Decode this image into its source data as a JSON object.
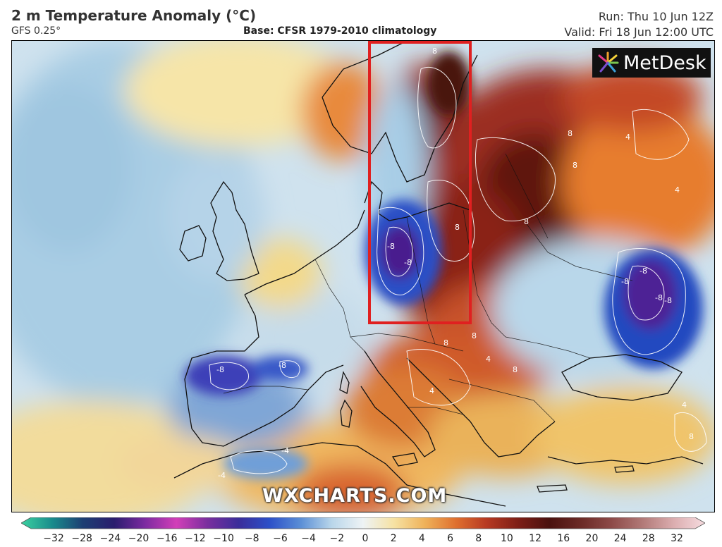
{
  "header": {
    "title": "2 m Temperature Anomaly (°C)",
    "model": "GFS 0.25°",
    "base": "Base: CFSR 1979-2010 climatology",
    "run": "Run: Thu 10 Jun 12Z",
    "valid": "Valid: Fri 18 Jun 12:00 UTC"
  },
  "logo": {
    "text": "MetDesk"
  },
  "watermark": "WXCHARTS.COM",
  "highlight_box": {
    "color": "#e02020"
  },
  "contour_labels": [
    "8",
    "8",
    "4",
    "8",
    "4",
    "8",
    "-8",
    "-8",
    "8",
    "-8",
    "-8",
    "-8",
    "-8",
    "8",
    "8",
    "4",
    "8",
    "-8",
    "-8",
    "-4",
    "4",
    "4",
    "8",
    "-4"
  ],
  "legend": {
    "ticks": [
      "−32",
      "−28",
      "−24",
      "−20",
      "−16",
      "−12",
      "−10",
      "−8",
      "−6",
      "−4",
      "−2",
      "0",
      "2",
      "4",
      "6",
      "8",
      "10",
      "12",
      "16",
      "20",
      "24",
      "28",
      "32"
    ]
  }
}
